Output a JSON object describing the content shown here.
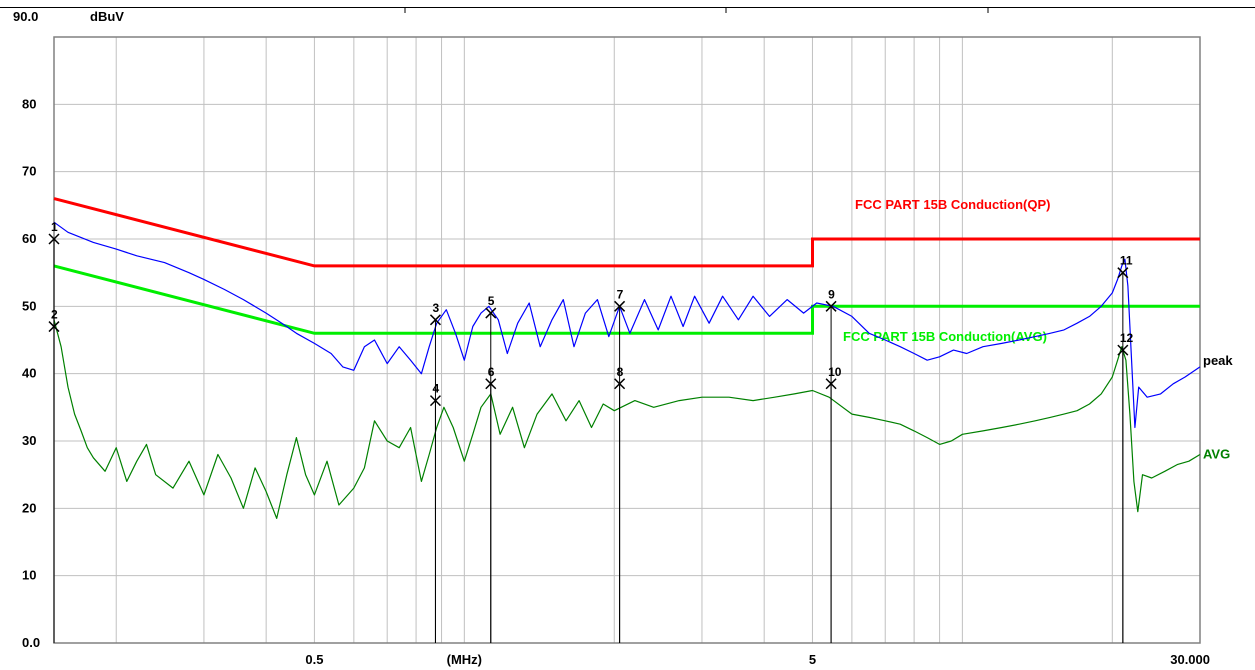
{
  "chart_data": {
    "type": "line",
    "title": "",
    "xlabel": "(MHz)",
    "ylabel": "dBuV",
    "xscale": "log",
    "xlim": [
      0.15,
      30.0
    ],
    "ylim": [
      0.0,
      90.0
    ],
    "yticks": [
      "0.0",
      "10",
      "20",
      "30",
      "40",
      "50",
      "60",
      "70",
      "80",
      "90.0"
    ],
    "xtick_labels": [
      {
        "x": 0.5,
        "label": "0.5"
      },
      {
        "x": 1.0,
        "label": "(MHz)"
      },
      {
        "x": 5.0,
        "label": "5"
      },
      {
        "x": 30.0,
        "label": "30.000"
      }
    ],
    "grid": true,
    "colors": {
      "qp_limit": "#ff0000",
      "avg_limit": "#00ee00",
      "peak": "#0000ff",
      "avg": "#008000",
      "grid": "#c0c0c0",
      "frame": "#808080"
    },
    "limits": [
      {
        "name": "FCC PART 15B Conduction(QP)",
        "color": "#ff0000",
        "points": [
          [
            0.15,
            66.0
          ],
          [
            0.5,
            56.0
          ],
          [
            5.0,
            56.0
          ],
          [
            5.0,
            60.0
          ],
          [
            30.0,
            60.0
          ]
        ]
      },
      {
        "name": "FCC PART 15B Conduction(AVG)",
        "color": "#00ee00",
        "points": [
          [
            0.15,
            56.0
          ],
          [
            0.5,
            46.0
          ],
          [
            5.0,
            46.0
          ],
          [
            5.0,
            50.0
          ],
          [
            30.0,
            50.0
          ]
        ]
      }
    ],
    "series": [
      {
        "name": "peak",
        "color": "#0000ff",
        "points": [
          [
            0.15,
            62.5
          ],
          [
            0.16,
            61.0
          ],
          [
            0.18,
            59.5
          ],
          [
            0.2,
            58.5
          ],
          [
            0.22,
            57.5
          ],
          [
            0.25,
            56.5
          ],
          [
            0.28,
            55.0
          ],
          [
            0.3,
            54.0
          ],
          [
            0.33,
            52.5
          ],
          [
            0.36,
            51.0
          ],
          [
            0.4,
            49.0
          ],
          [
            0.43,
            47.5
          ],
          [
            0.46,
            46.0
          ],
          [
            0.5,
            44.5
          ],
          [
            0.54,
            43.0
          ],
          [
            0.57,
            41.0
          ],
          [
            0.6,
            40.5
          ],
          [
            0.63,
            44.0
          ],
          [
            0.66,
            45.0
          ],
          [
            0.7,
            41.5
          ],
          [
            0.74,
            44.0
          ],
          [
            0.78,
            42.0
          ],
          [
            0.82,
            40.0
          ],
          [
            0.85,
            44.0
          ],
          [
            0.88,
            47.5
          ],
          [
            0.92,
            49.5
          ],
          [
            0.96,
            46.0
          ],
          [
            1.0,
            42.0
          ],
          [
            1.04,
            47.0
          ],
          [
            1.08,
            49.0
          ],
          [
            1.12,
            50.0
          ],
          [
            1.17,
            48.0
          ],
          [
            1.22,
            43.0
          ],
          [
            1.28,
            47.5
          ],
          [
            1.35,
            50.5
          ],
          [
            1.42,
            44.0
          ],
          [
            1.5,
            48.0
          ],
          [
            1.58,
            51.0
          ],
          [
            1.66,
            44.0
          ],
          [
            1.75,
            49.0
          ],
          [
            1.85,
            51.0
          ],
          [
            1.95,
            45.5
          ],
          [
            2.05,
            50.0
          ],
          [
            2.15,
            46.0
          ],
          [
            2.3,
            51.0
          ],
          [
            2.45,
            46.5
          ],
          [
            2.6,
            51.5
          ],
          [
            2.75,
            47.0
          ],
          [
            2.9,
            51.5
          ],
          [
            3.1,
            47.5
          ],
          [
            3.3,
            51.5
          ],
          [
            3.55,
            48.0
          ],
          [
            3.8,
            51.5
          ],
          [
            4.1,
            48.5
          ],
          [
            4.45,
            51.0
          ],
          [
            4.8,
            49.0
          ],
          [
            5.1,
            50.5
          ],
          [
            5.5,
            50.0
          ],
          [
            6.0,
            48.5
          ],
          [
            6.5,
            46.0
          ],
          [
            7.0,
            45.0
          ],
          [
            7.5,
            44.0
          ],
          [
            8.0,
            43.0
          ],
          [
            8.5,
            42.0
          ],
          [
            9.0,
            42.5
          ],
          [
            9.6,
            43.5
          ],
          [
            10.2,
            43.0
          ],
          [
            11.0,
            44.0
          ],
          [
            12.0,
            44.5
          ],
          [
            13.0,
            45.0
          ],
          [
            14.0,
            45.5
          ],
          [
            15.0,
            46.0
          ],
          [
            16.0,
            46.5
          ],
          [
            17.0,
            47.5
          ],
          [
            18.0,
            48.5
          ],
          [
            19.0,
            50.0
          ],
          [
            20.0,
            52.0
          ],
          [
            20.5,
            54.0
          ],
          [
            20.9,
            56.0
          ],
          [
            21.2,
            57.0
          ],
          [
            21.5,
            53.0
          ],
          [
            21.8,
            44.0
          ],
          [
            22.2,
            32.0
          ],
          [
            22.6,
            38.0
          ],
          [
            23.5,
            36.5
          ],
          [
            25.0,
            37.0
          ],
          [
            26.5,
            38.5
          ],
          [
            28.0,
            39.5
          ],
          [
            30.0,
            41.0
          ]
        ]
      },
      {
        "name": "AVG",
        "color": "#008000",
        "points": [
          [
            0.15,
            48.0
          ],
          [
            0.155,
            44.0
          ],
          [
            0.16,
            38.0
          ],
          [
            0.165,
            34.0
          ],
          [
            0.17,
            31.5
          ],
          [
            0.175,
            29.0
          ],
          [
            0.18,
            27.5
          ],
          [
            0.19,
            25.5
          ],
          [
            0.2,
            29.0
          ],
          [
            0.21,
            24.0
          ],
          [
            0.22,
            27.0
          ],
          [
            0.23,
            29.5
          ],
          [
            0.24,
            25.0
          ],
          [
            0.26,
            23.0
          ],
          [
            0.28,
            27.0
          ],
          [
            0.3,
            22.0
          ],
          [
            0.32,
            28.0
          ],
          [
            0.34,
            24.5
          ],
          [
            0.36,
            20.0
          ],
          [
            0.38,
            26.0
          ],
          [
            0.4,
            22.5
          ],
          [
            0.42,
            18.5
          ],
          [
            0.44,
            25.0
          ],
          [
            0.46,
            30.5
          ],
          [
            0.48,
            25.0
          ],
          [
            0.5,
            22.0
          ],
          [
            0.53,
            27.0
          ],
          [
            0.56,
            20.5
          ],
          [
            0.6,
            23.0
          ],
          [
            0.63,
            26.0
          ],
          [
            0.66,
            33.0
          ],
          [
            0.7,
            30.0
          ],
          [
            0.74,
            29.0
          ],
          [
            0.78,
            32.0
          ],
          [
            0.82,
            24.0
          ],
          [
            0.85,
            28.0
          ],
          [
            0.88,
            32.0
          ],
          [
            0.91,
            35.0
          ],
          [
            0.95,
            32.0
          ],
          [
            1.0,
            27.0
          ],
          [
            1.04,
            31.0
          ],
          [
            1.08,
            35.0
          ],
          [
            1.13,
            37.0
          ],
          [
            1.18,
            31.0
          ],
          [
            1.25,
            35.0
          ],
          [
            1.32,
            29.0
          ],
          [
            1.4,
            34.0
          ],
          [
            1.5,
            37.0
          ],
          [
            1.6,
            33.0
          ],
          [
            1.7,
            36.0
          ],
          [
            1.8,
            32.0
          ],
          [
            1.9,
            35.5
          ],
          [
            2.0,
            34.5
          ],
          [
            2.2,
            36.0
          ],
          [
            2.4,
            35.0
          ],
          [
            2.7,
            36.0
          ],
          [
            3.0,
            36.5
          ],
          [
            3.4,
            36.5
          ],
          [
            3.8,
            36.0
          ],
          [
            4.2,
            36.5
          ],
          [
            4.6,
            37.0
          ],
          [
            5.0,
            37.5
          ],
          [
            5.4,
            36.5
          ],
          [
            6.0,
            34.0
          ],
          [
            6.5,
            33.5
          ],
          [
            7.0,
            33.0
          ],
          [
            7.5,
            32.5
          ],
          [
            8.0,
            31.5
          ],
          [
            8.5,
            30.5
          ],
          [
            9.0,
            29.5
          ],
          [
            9.5,
            30.0
          ],
          [
            10.0,
            31.0
          ],
          [
            11.0,
            31.5
          ],
          [
            12.0,
            32.0
          ],
          [
            13.0,
            32.5
          ],
          [
            14.0,
            33.0
          ],
          [
            15.0,
            33.5
          ],
          [
            16.0,
            34.0
          ],
          [
            17.0,
            34.5
          ],
          [
            18.0,
            35.5
          ],
          [
            19.0,
            37.0
          ],
          [
            20.0,
            39.5
          ],
          [
            20.5,
            42.0
          ],
          [
            20.9,
            44.0
          ],
          [
            21.3,
            42.0
          ],
          [
            21.7,
            34.0
          ],
          [
            22.1,
            24.0
          ],
          [
            22.5,
            19.5
          ],
          [
            23.0,
            25.0
          ],
          [
            24.0,
            24.5
          ],
          [
            25.5,
            25.5
          ],
          [
            27.0,
            26.5
          ],
          [
            28.5,
            27.0
          ],
          [
            30.0,
            28.0
          ]
        ]
      }
    ],
    "markers": [
      {
        "id": "1",
        "x": 0.15,
        "y": 60.0
      },
      {
        "id": "2",
        "x": 0.15,
        "y": 47.0
      },
      {
        "id": "3",
        "x": 0.875,
        "y": 48.0
      },
      {
        "id": "4",
        "x": 0.875,
        "y": 36.0
      },
      {
        "id": "5",
        "x": 1.13,
        "y": 49.0
      },
      {
        "id": "6",
        "x": 1.13,
        "y": 38.5
      },
      {
        "id": "7",
        "x": 2.05,
        "y": 50.0
      },
      {
        "id": "8",
        "x": 2.05,
        "y": 38.5
      },
      {
        "id": "9",
        "x": 5.45,
        "y": 50.0
      },
      {
        "id": "10",
        "x": 5.45,
        "y": 38.5
      },
      {
        "id": "11",
        "x": 21.0,
        "y": 55.0
      },
      {
        "id": "12",
        "x": 21.0,
        "y": 43.5
      }
    ]
  }
}
